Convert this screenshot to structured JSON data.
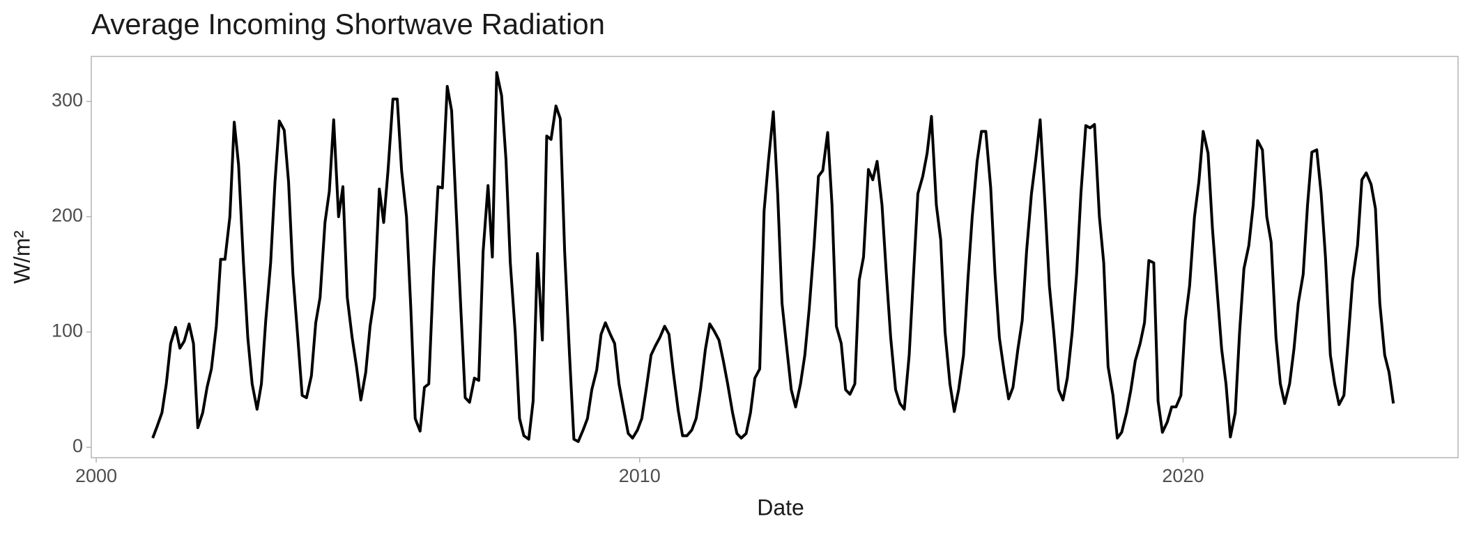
{
  "chart_data": {
    "type": "line",
    "title": "Average Incoming Shortwave Radiation",
    "x_label": "Date",
    "y_label": "W/m²",
    "x": [
      2001.04,
      2001.12,
      2001.21,
      2001.29,
      2001.37,
      2001.46,
      2001.54,
      2001.62,
      2001.71,
      2001.79,
      2001.87,
      2001.96,
      2002.04,
      2002.12,
      2002.21,
      2002.29,
      2002.37,
      2002.46,
      2002.54,
      2002.62,
      2002.71,
      2002.79,
      2002.87,
      2002.96,
      2003.04,
      2003.12,
      2003.21,
      2003.29,
      2003.37,
      2003.46,
      2003.54,
      2003.62,
      2003.71,
      2003.79,
      2003.87,
      2003.96,
      2004.04,
      2004.12,
      2004.21,
      2004.29,
      2004.37,
      2004.46,
      2004.54,
      2004.62,
      2004.71,
      2004.79,
      2004.87,
      2004.96,
      2005.04,
      2005.12,
      2005.21,
      2005.29,
      2005.37,
      2005.46,
      2005.54,
      2005.62,
      2005.71,
      2005.79,
      2005.87,
      2005.96,
      2006.04,
      2006.12,
      2006.21,
      2006.29,
      2006.37,
      2006.46,
      2006.54,
      2006.62,
      2006.71,
      2006.79,
      2006.87,
      2006.96,
      2007.04,
      2007.12,
      2007.21,
      2007.29,
      2007.37,
      2007.46,
      2007.54,
      2007.62,
      2007.71,
      2007.79,
      2007.87,
      2007.96,
      2008.04,
      2008.12,
      2008.21,
      2008.29,
      2008.37,
      2008.46,
      2008.54,
      2008.62,
      2008.71,
      2008.79,
      2008.87,
      2008.96,
      2009.04,
      2009.12,
      2009.21,
      2009.29,
      2009.37,
      2009.46,
      2009.54,
      2009.62,
      2009.71,
      2009.79,
      2009.87,
      2009.96,
      2010.04,
      2010.12,
      2010.21,
      2010.29,
      2010.37,
      2010.46,
      2010.54,
      2010.62,
      2010.71,
      2010.79,
      2010.87,
      2010.96,
      2011.04,
      2011.12,
      2011.21,
      2011.29,
      2011.37,
      2011.46,
      2011.54,
      2011.62,
      2011.71,
      2011.79,
      2011.87,
      2011.96,
      2012.04,
      2012.12,
      2012.21,
      2012.29,
      2012.37,
      2012.46,
      2012.54,
      2012.62,
      2012.71,
      2012.79,
      2012.87,
      2012.96,
      2013.04,
      2013.12,
      2013.21,
      2013.29,
      2013.37,
      2013.46,
      2013.54,
      2013.62,
      2013.71,
      2013.79,
      2013.87,
      2013.96,
      2014.04,
      2014.12,
      2014.21,
      2014.29,
      2014.37,
      2014.46,
      2014.54,
      2014.62,
      2014.71,
      2014.79,
      2014.87,
      2014.96,
      2015.04,
      2015.12,
      2015.21,
      2015.29,
      2015.37,
      2015.46,
      2015.54,
      2015.62,
      2015.71,
      2015.79,
      2015.87,
      2015.96,
      2016.04,
      2016.12,
      2016.21,
      2016.29,
      2016.37,
      2016.46,
      2016.54,
      2016.62,
      2016.71,
      2016.79,
      2016.87,
      2016.96,
      2017.04,
      2017.12,
      2017.21,
      2017.29,
      2017.37,
      2017.46,
      2017.54,
      2017.62,
      2017.71,
      2017.79,
      2017.87,
      2017.96,
      2018.04,
      2018.12,
      2018.21,
      2018.29,
      2018.37,
      2018.46,
      2018.54,
      2018.62,
      2018.71,
      2018.79,
      2018.87,
      2018.96,
      2019.04,
      2019.12,
      2019.21,
      2019.29,
      2019.37,
      2019.46,
      2019.54,
      2019.62,
      2019.71,
      2019.79,
      2019.87,
      2019.96,
      2020.04,
      2020.12,
      2020.21,
      2020.29,
      2020.37,
      2020.46,
      2020.54,
      2020.62,
      2020.71,
      2020.79,
      2020.87,
      2020.96,
      2021.04,
      2021.12,
      2021.21,
      2021.29,
      2021.37,
      2021.46,
      2021.54,
      2021.62,
      2021.71,
      2021.79,
      2021.87,
      2021.96,
      2022.04,
      2022.12,
      2022.21,
      2022.29,
      2022.37,
      2022.46,
      2022.54,
      2022.62,
      2022.71,
      2022.79,
      2022.87,
      2022.96,
      2023.04,
      2023.12,
      2023.21,
      2023.29,
      2023.37,
      2023.46,
      2023.54,
      2023.62,
      2023.71,
      2023.79,
      2023.87
    ],
    "series": [
      {
        "color": "#000000",
        "values": [
          8,
          18,
          30,
          55,
          90,
          104,
          86,
          92,
          107,
          90,
          17,
          30,
          52,
          68,
          105,
          163,
          163,
          200,
          282,
          245,
          160,
          95,
          55,
          33,
          55,
          110,
          160,
          230,
          283,
          275,
          230,
          150,
          95,
          45,
          43,
          62,
          108,
          130,
          195,
          222,
          284,
          200,
          226,
          130,
          95,
          70,
          41,
          65,
          105,
          130,
          224,
          195,
          240,
          302,
          302,
          240,
          200,
          120,
          25,
          14,
          52,
          55,
          155,
          226,
          225,
          313,
          292,
          210,
          120,
          43,
          39,
          60,
          58,
          170,
          227,
          165,
          325,
          305,
          250,
          160,
          100,
          25,
          10,
          7,
          40,
          168,
          93,
          270,
          267,
          296,
          285,
          170,
          80,
          7,
          5,
          15,
          25,
          50,
          67,
          98,
          108,
          98,
          90,
          55,
          32,
          12,
          8,
          15,
          25,
          50,
          80,
          88,
          95,
          105,
          98,
          65,
          32,
          10,
          10,
          15,
          25,
          50,
          85,
          107,
          101,
          93,
          75,
          55,
          30,
          12,
          8,
          12,
          30,
          60,
          68,
          205,
          248,
          291,
          220,
          125,
          85,
          50,
          35,
          55,
          80,
          120,
          175,
          235,
          240,
          273,
          210,
          105,
          90,
          50,
          46,
          55,
          145,
          165,
          241,
          232,
          248,
          210,
          150,
          95,
          50,
          38,
          33,
          80,
          150,
          220,
          235,
          255,
          287,
          210,
          180,
          100,
          55,
          31,
          50,
          80,
          145,
          200,
          248,
          274,
          274,
          225,
          150,
          95,
          65,
          42,
          52,
          85,
          110,
          170,
          220,
          250,
          284,
          210,
          140,
          100,
          50,
          41,
          60,
          100,
          150,
          220,
          279,
          277,
          280,
          200,
          160,
          70,
          45,
          8,
          13,
          30,
          50,
          75,
          90,
          108,
          162,
          160,
          40,
          13,
          22,
          35,
          35,
          45,
          110,
          140,
          200,
          230,
          274,
          255,
          190,
          140,
          85,
          55,
          9,
          30,
          100,
          155,
          175,
          210,
          266,
          258,
          200,
          178,
          95,
          55,
          38,
          55,
          85,
          125,
          150,
          210,
          256,
          258,
          220,
          165,
          80,
          55,
          37,
          45,
          95,
          145,
          175,
          232,
          238,
          228,
          207,
          125,
          80,
          65,
          38
        ]
      }
    ],
    "xlim": [
      1999.91,
      2025.06
    ],
    "xticks": [
      2000,
      2010,
      2020
    ],
    "ylim": [
      -9,
      339
    ],
    "yticks": [
      0,
      100,
      200,
      300
    ]
  }
}
